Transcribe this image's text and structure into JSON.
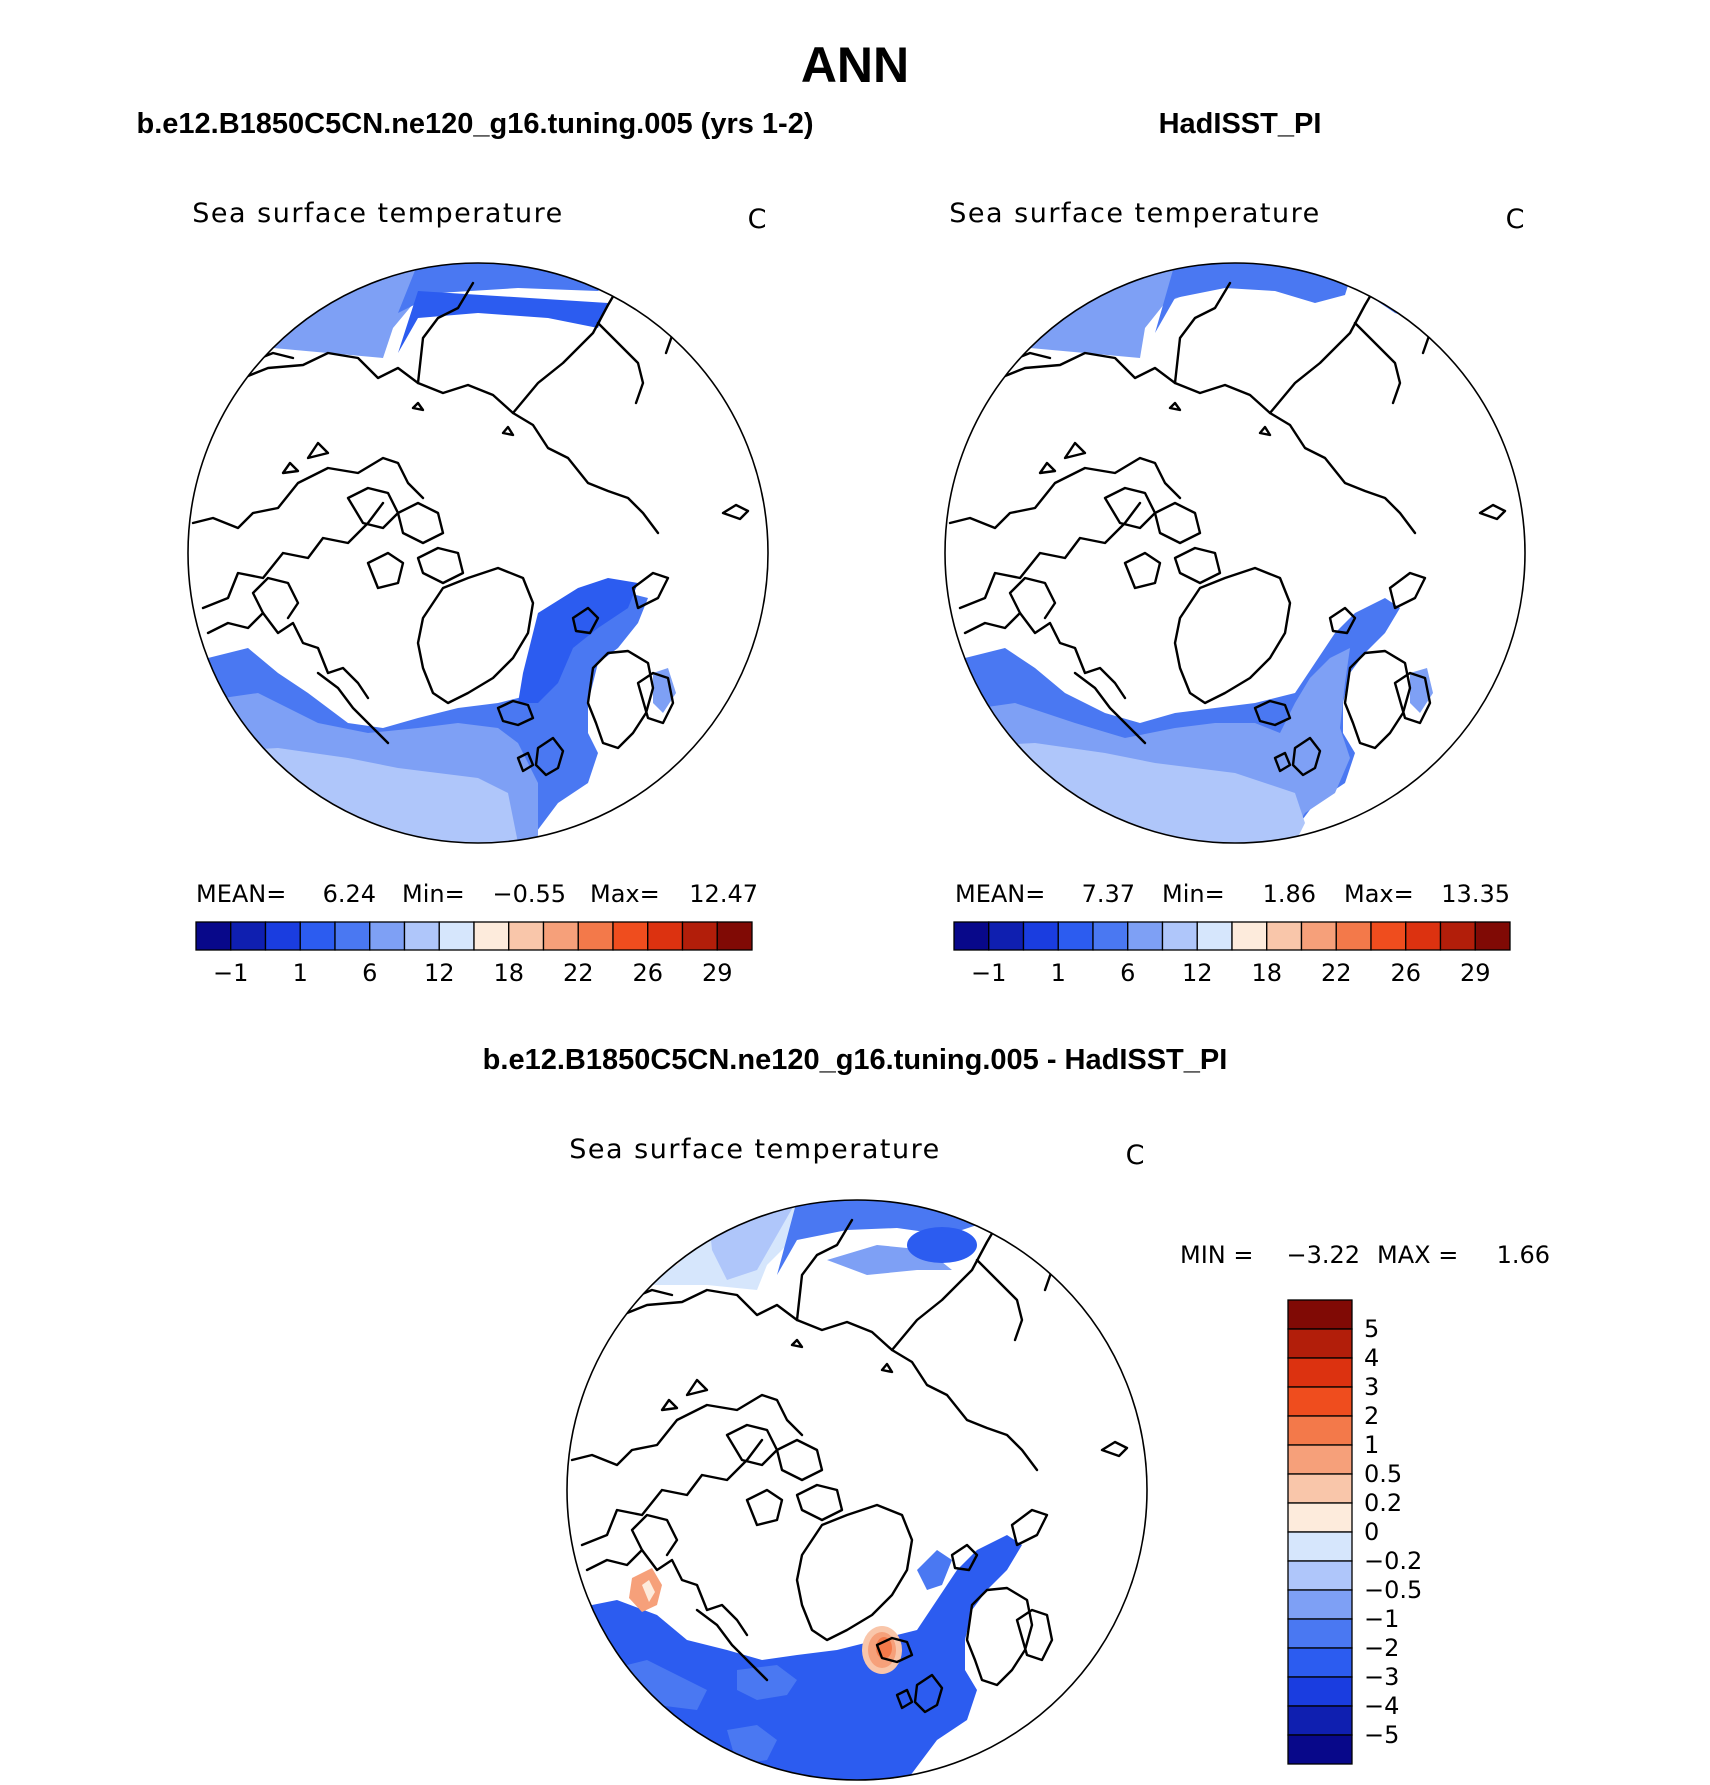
{
  "figure_title": "ANN",
  "panels": [
    {
      "id": "model",
      "header": "b.e12.B1850C5CN.ne120_g16.tuning.005 (yrs 1-2)",
      "variable": "Sea surface temperature",
      "units": "C",
      "stats": {
        "mean_label": "MEAN=",
        "mean": "6.24",
        "min_label": "Min=",
        "min": "−0.55",
        "max_label": "Max=",
        "max": "12.47"
      }
    },
    {
      "id": "obs",
      "header": "HadISST_PI",
      "variable": "Sea surface temperature",
      "units": "C",
      "stats": {
        "mean_label": "MEAN=",
        "mean": "7.37",
        "min_label": "Min=",
        "min": "1.86",
        "max_label": "Max=",
        "max": "13.35"
      }
    }
  ],
  "colorbar": {
    "labels": [
      "−1",
      "1",
      "6",
      "12",
      "18",
      "22",
      "26",
      "29"
    ],
    "colors": [
      "#08088a",
      "#0f1fb0",
      "#1a3de0",
      "#2c5cf0",
      "#4a78f2",
      "#7ea0f5",
      "#afc6fa",
      "#d6e6fc",
      "#fdebdc",
      "#f9c6aa",
      "#f6a07a",
      "#f3794a",
      "#ef4d1e",
      "#dc3210",
      "#b21e0a",
      "#800a05"
    ]
  },
  "diff": {
    "header": "b.e12.B1850C5CN.ne120_g16.tuning.005 - HadISST_PI",
    "variable": "Sea surface temperature",
    "units": "C",
    "stats": {
      "min_label": "MIN =",
      "min": "−3.22",
      "max_label": "MAX =",
      "max": "1.66"
    },
    "colorbar": {
      "labels_top_to_bottom": [
        "5",
        "4",
        "3",
        "2",
        "1",
        "0.5",
        "0.2",
        "0",
        "−0.2",
        "−0.5",
        "−1",
        "−2",
        "−3",
        "−4",
        "−5"
      ],
      "colors_top_to_bottom": [
        "#800a05",
        "#b21e0a",
        "#dc3210",
        "#ef4d1e",
        "#f3794a",
        "#f6a07a",
        "#f9c6aa",
        "#fdebdc",
        "#d6e6fc",
        "#afc6fa",
        "#7ea0f5",
        "#4a78f2",
        "#2c5cf0",
        "#1a3de0",
        "#0f1fb0",
        "#08088a"
      ]
    }
  }
}
